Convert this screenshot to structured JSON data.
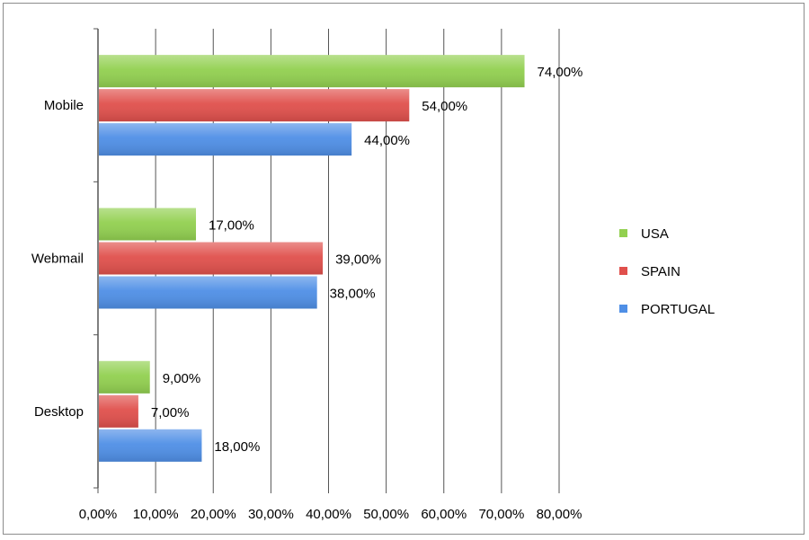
{
  "chart_data": {
    "type": "bar",
    "orientation": "horizontal",
    "categories": [
      "Mobile",
      "Webmail",
      "Desktop"
    ],
    "series": [
      {
        "name": "USA",
        "color": "#92d050",
        "values": [
          74,
          17,
          9
        ],
        "labels": [
          "74,00%",
          "17,00%",
          "9,00%"
        ]
      },
      {
        "name": "SPAIN",
        "color": "#e0504c",
        "values": [
          54,
          39,
          7
        ],
        "labels": [
          "54,00%",
          "39,00%",
          "7,00%"
        ]
      },
      {
        "name": "PORTUGAL",
        "color": "#4f8fe6",
        "values": [
          44,
          38,
          18
        ],
        "labels": [
          "44,00%",
          "38,00%",
          "18,00%"
        ]
      }
    ],
    "x_ticks": [
      "0,00%",
      "10,00%",
      "20,00%",
      "30,00%",
      "40,00%",
      "50,00%",
      "60,00%",
      "70,00%",
      "80,00%"
    ],
    "xlim": [
      0,
      80
    ],
    "grid": true,
    "legend_position": "right"
  }
}
